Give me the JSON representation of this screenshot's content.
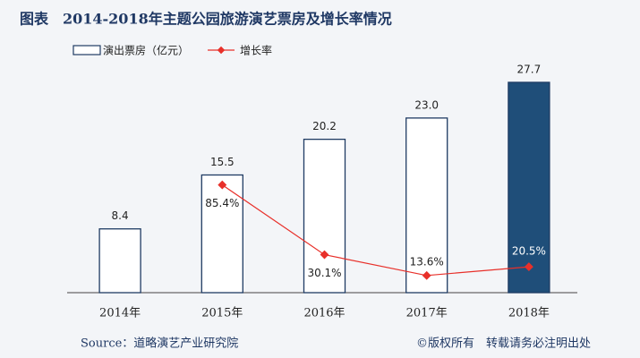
{
  "chart_data": {
    "type": "bar_line",
    "title": "图表　2014-2018年主题公园旅游演艺票房及增长率情况",
    "categories": [
      "2014年",
      "2015年",
      "2016年",
      "2017年",
      "2018年"
    ],
    "series": [
      {
        "name": "演出票房（亿元）",
        "type": "bar",
        "color": "#1f3b63",
        "fills": [
          "#ffffff",
          "#ffffff",
          "#ffffff",
          "#ffffff",
          "#1f4e79"
        ],
        "values": [
          8.4,
          15.5,
          20.2,
          23.0,
          27.7
        ],
        "value_labels": [
          "8.4",
          "15.5",
          "20.2",
          "23.0",
          "27.7"
        ]
      },
      {
        "name": "增长率",
        "type": "line",
        "color": "#e8302a",
        "values": [
          null,
          85.4,
          30.1,
          13.6,
          20.5
        ],
        "value_labels": [
          null,
          "85.4%",
          "30.1%",
          "13.6%",
          "20.5%"
        ]
      }
    ],
    "source": "Source：道略演艺产业研究院",
    "copyright": "©版权所有　转载请务必注明出处"
  }
}
